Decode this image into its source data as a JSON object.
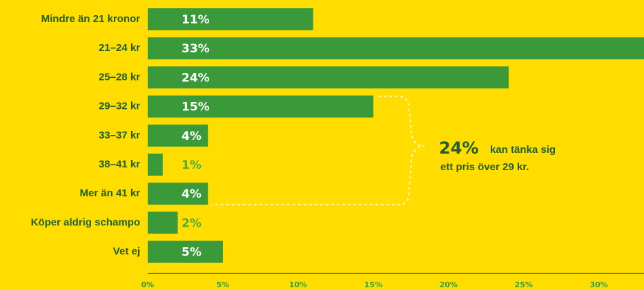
{
  "chart_data": {
    "type": "bar",
    "orientation": "horizontal",
    "categories": [
      "Mindre än 21 kronor",
      "21–24 kr",
      "25–28 kr",
      "29–32 kr",
      "33–37 kr",
      "38–41 kr",
      "Mer än 41 kr",
      "Köper aldrig schampo",
      "Vet ej"
    ],
    "values": [
      11,
      33,
      24,
      15,
      4,
      1,
      4,
      2,
      5
    ],
    "value_labels": [
      "11%",
      "33%",
      "24%",
      "15%",
      "4%",
      "1%",
      "4%",
      "2%",
      "5%"
    ],
    "color": "#3a9a3a",
    "xlim": [
      0,
      33
    ],
    "xticks": [
      {
        "value": 0,
        "label": "0%"
      },
      {
        "value": 5,
        "label": "5%"
      },
      {
        "value": 10,
        "label": "10%"
      },
      {
        "value": 15,
        "label": "15%"
      },
      {
        "value": 20,
        "label": "20%"
      },
      {
        "value": 25,
        "label": "25%"
      },
      {
        "value": 30,
        "label": "30%"
      }
    ],
    "annotation": {
      "value_label": "24%",
      "lines": [
        "kan tänka sig",
        "ett pris över 29 kr."
      ]
    }
  }
}
